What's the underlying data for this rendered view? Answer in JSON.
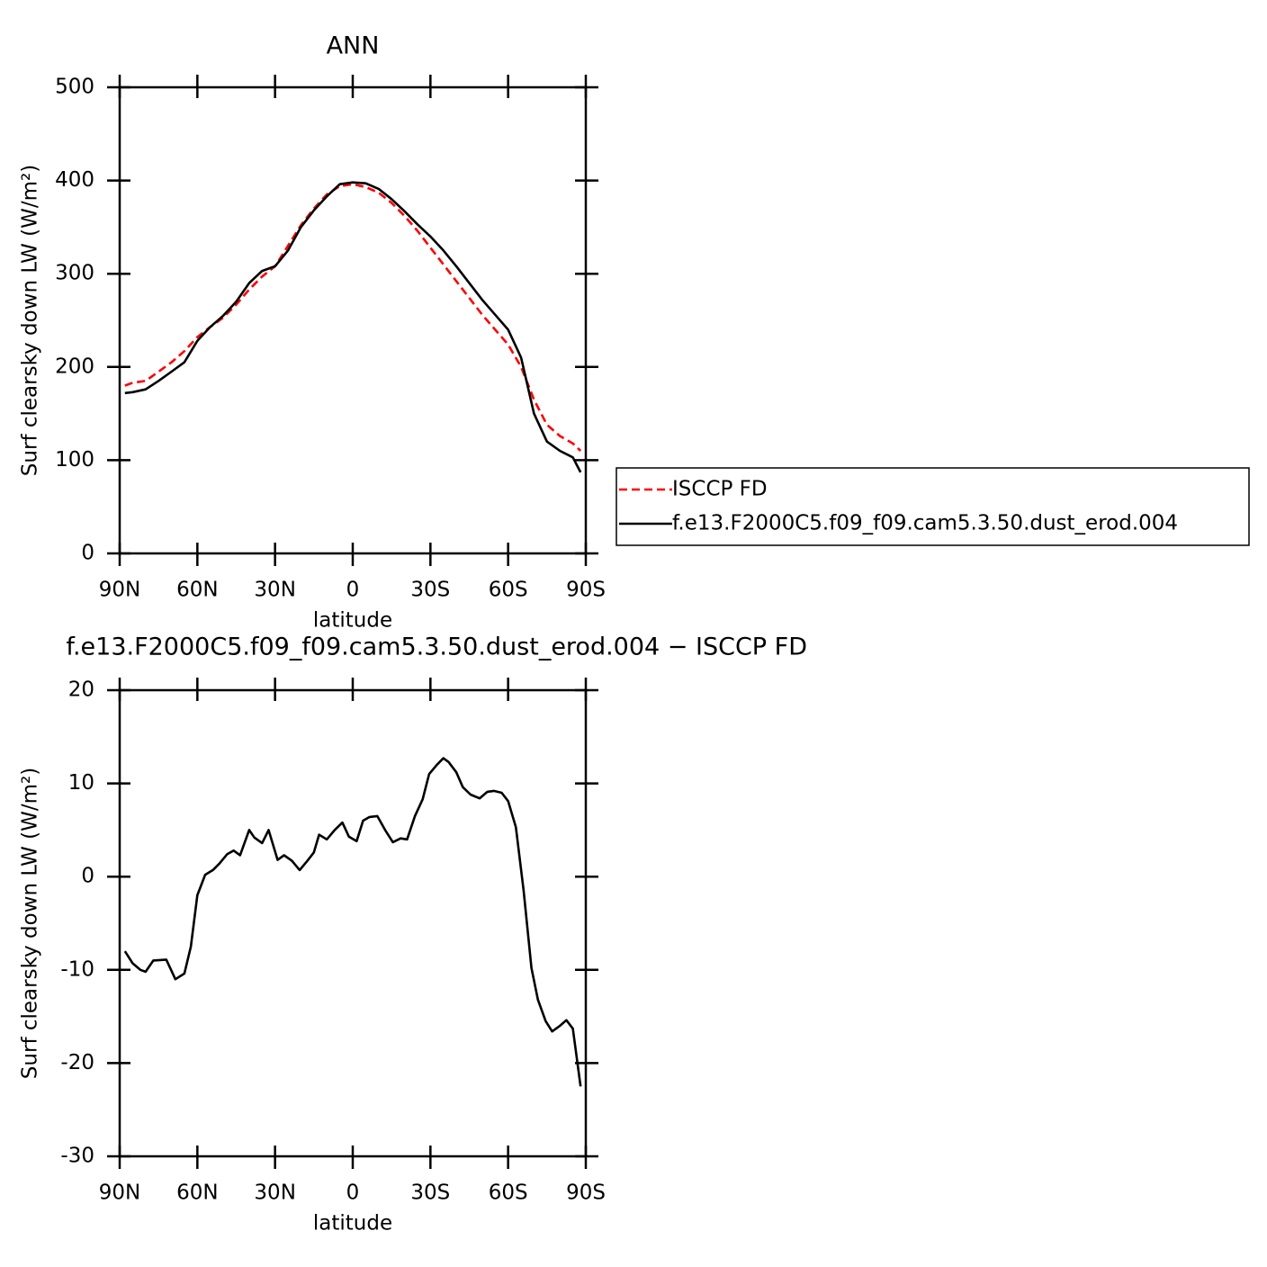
{
  "chart_data": [
    {
      "type": "line",
      "title": "ANN",
      "xlabel": "latitude",
      "ylabel": "Surf clearsky down LW (W/m²)",
      "x": [
        88,
        85,
        80,
        75,
        70,
        65,
        60,
        55,
        50,
        45,
        40,
        35,
        30,
        25,
        20,
        15,
        10,
        5,
        0,
        -5,
        -10,
        -15,
        -20,
        -25,
        -30,
        -35,
        -40,
        -45,
        -50,
        -55,
        -60,
        -65,
        -70,
        -75,
        -80,
        -85,
        -88
      ],
      "series": [
        {
          "name": "ISCCP FD",
          "color": "#ff0000",
          "line_style": "dashed",
          "values": [
            180,
            183,
            185,
            195,
            205,
            217,
            232,
            243,
            253,
            267,
            283,
            297,
            308,
            330,
            352,
            370,
            385,
            394,
            396,
            393,
            387,
            376,
            362,
            346,
            328,
            310,
            292,
            274,
            256,
            240,
            224,
            200,
            165,
            138,
            126,
            118,
            110
          ]
        },
        {
          "name": "f.e13.F2000C5.f09_f09.cam5.3.50.dust_erod.004",
          "color": "#000000",
          "line_style": "solid",
          "values": [
            172,
            173,
            176,
            185,
            195,
            205,
            228,
            243,
            255,
            270,
            290,
            303,
            308,
            325,
            350,
            368,
            383,
            396,
            398,
            397,
            391,
            380,
            367,
            353,
            340,
            325,
            308,
            290,
            272,
            256,
            240,
            210,
            150,
            120,
            110,
            103,
            87
          ]
        }
      ],
      "xlim": [
        90,
        -90
      ],
      "xticks": [
        {
          "value": 90,
          "label": "90N"
        },
        {
          "value": 60,
          "label": "60N"
        },
        {
          "value": 30,
          "label": "30N"
        },
        0,
        {
          "value": -30,
          "label": "30S"
        },
        {
          "value": -60,
          "label": "60S"
        },
        {
          "value": -90,
          "label": "90S"
        }
      ],
      "ylim": [
        0,
        500
      ],
      "yticks": [
        0,
        100,
        200,
        300,
        400,
        500
      ],
      "legend": "right",
      "grid": false
    },
    {
      "type": "line",
      "title": "f.e13.F2000C5.f09_f09.cam5.3.50.dust_erod.004 − ISCCP FD",
      "xlabel": "latitude",
      "ylabel": "Surf clearsky down LW (W/m²)",
      "x": [
        88,
        85,
        82,
        80,
        77,
        72,
        68.5,
        65,
        62.5,
        60,
        57,
        54,
        51.5,
        48.5,
        46,
        43.5,
        40,
        38,
        35,
        32.5,
        29,
        26.5,
        23.5,
        20.5,
        17.5,
        15,
        13,
        10,
        7,
        4,
        1.5,
        -1.5,
        -4,
        -6.5,
        -9.5,
        -12.5,
        -15.5,
        -18.5,
        -21,
        -24,
        -27,
        -29.5,
        -32.5,
        -35,
        -37,
        -40,
        -42.5,
        -45.5,
        -49,
        -52,
        -54.5,
        -57.5,
        -60,
        -63,
        -66,
        -69,
        -71.5,
        -74.5,
        -77,
        -80,
        -82.5,
        -85,
        -88
      ],
      "values": [
        -8,
        -9.3,
        -10,
        -10.2,
        -9,
        -8.9,
        -11,
        -10.4,
        -7.5,
        -2,
        0.2,
        0.7,
        1.4,
        2.4,
        2.8,
        2.3,
        5,
        4.2,
        3.6,
        5,
        1.8,
        2.3,
        1.7,
        0.7,
        1.7,
        2.6,
        4.5,
        4,
        5,
        5.8,
        4.3,
        3.8,
        6,
        6.4,
        6.5,
        5,
        3.7,
        4.1,
        4,
        6.5,
        8.3,
        11,
        12,
        12.7,
        12.3,
        11.2,
        9.6,
        8.8,
        8.4,
        9.1,
        9.2,
        9,
        8.1,
        5.3,
        -1.5,
        -9.8,
        -13.2,
        -15.5,
        -16.6,
        -16,
        -15.4,
        -16.3,
        -22.5
      ],
      "color": "#000000",
      "xlim": [
        90,
        -90
      ],
      "xticks": [
        {
          "value": 90,
          "label": "90N"
        },
        {
          "value": 60,
          "label": "60N"
        },
        {
          "value": 30,
          "label": "30N"
        },
        0,
        {
          "value": -30,
          "label": "30S"
        },
        {
          "value": -60,
          "label": "60S"
        },
        {
          "value": -90,
          "label": "90S"
        }
      ],
      "ylim": [
        -30,
        20
      ],
      "yticks": [
        -30,
        -20,
        -10,
        0,
        10,
        20
      ],
      "grid": false
    }
  ]
}
